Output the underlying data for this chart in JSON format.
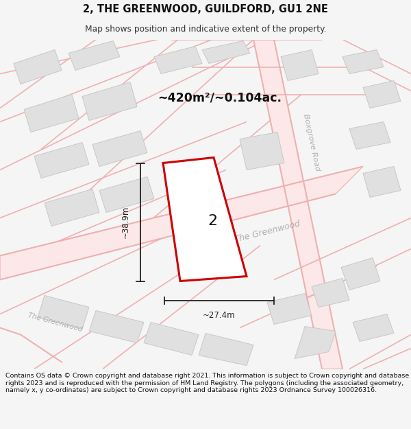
{
  "title": "2, THE GREENWOOD, GUILDFORD, GU1 2NE",
  "subtitle": "Map shows position and indicative extent of the property.",
  "area_label": "~420m²/~0.104ac.",
  "width_label": "~27.4m",
  "height_label": "~38.9m",
  "number_label": "2",
  "footer": "Contains OS data © Crown copyright and database right 2021. This information is subject to Crown copyright and database rights 2023 and is reproduced with the permission of HM Land Registry. The polygons (including the associated geometry, namely x, y co-ordinates) are subject to Crown copyright and database rights 2023 Ordnance Survey 100026316.",
  "bg_color": "#f5f5f5",
  "map_bg": "#ffffff",
  "road_line_color": "#f0b0b0",
  "road_fill_color": "#fce8e8",
  "building_color": "#e0e0e0",
  "building_edge": "#c8c8c8",
  "plot_fill": "#ffffff",
  "plot_edge": "#cc0000",
  "street_label_color": "#b0b0b0",
  "dim_color": "#222222",
  "text_color": "#111111"
}
